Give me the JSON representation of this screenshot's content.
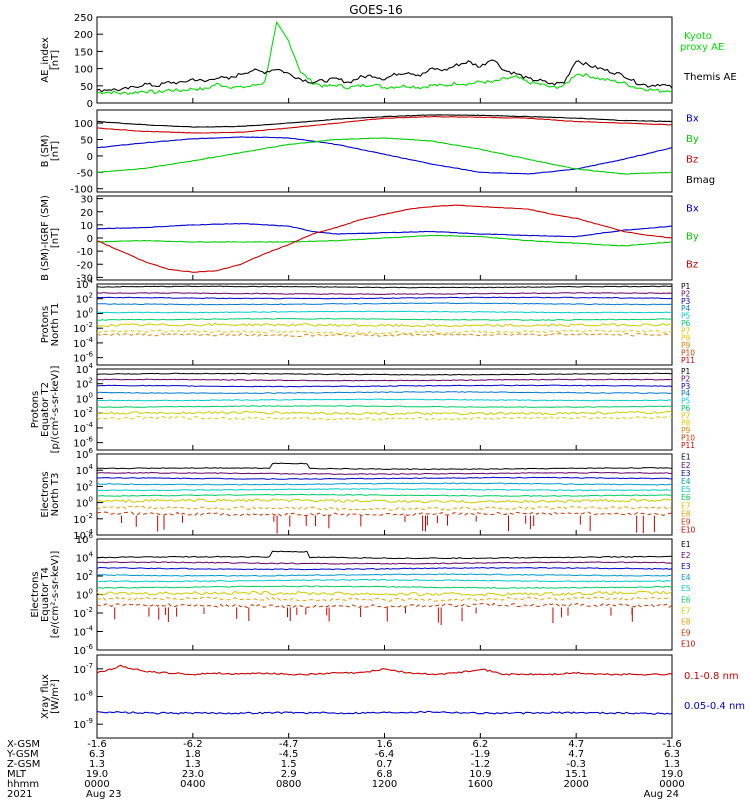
{
  "title": "GOES-16",
  "chart_data": [
    {
      "type": "line",
      "ylabel": "AE_index\n[nT]",
      "ylim": [
        0,
        250
      ],
      "yticks": [
        "0",
        "50",
        "100",
        "150",
        "200",
        "250"
      ],
      "legend": [
        {
          "label": "Kyoto\nproxy AE",
          "color": "#00dd00"
        },
        {
          "label": "Themis AE",
          "color": "#000000"
        }
      ],
      "series": [
        {
          "name": "Kyoto proxy AE",
          "color": "#00dd00",
          "x": [
            0,
            0.5,
            1,
            1.5,
            2,
            2.5,
            3,
            3.5,
            4,
            4.5,
            5,
            5.5,
            6,
            6.5,
            7,
            7.5,
            8,
            8.5,
            9,
            9.5,
            10,
            10.5,
            11,
            11.5,
            12,
            12.5,
            13,
            13.5,
            14,
            14.5,
            15,
            15.5,
            16,
            16.5,
            17,
            17.5,
            18,
            18.5,
            19,
            19.5,
            20,
            20.5,
            21,
            21.5,
            22,
            22.5,
            23,
            23.5,
            24
          ],
          "values": [
            30,
            32,
            28,
            30,
            35,
            30,
            38,
            36,
            42,
            40,
            55,
            48,
            45,
            50,
            60,
            230,
            180,
            90,
            60,
            48,
            52,
            45,
            50,
            55,
            45,
            48,
            50,
            45,
            52,
            50,
            58,
            55,
            62,
            60,
            70,
            75,
            60,
            55,
            45,
            50,
            85,
            80,
            70,
            65,
            58,
            45,
            40,
            35,
            38
          ]
        },
        {
          "name": "Themis AE",
          "color": "#000000",
          "x": [
            0,
            0.5,
            1,
            1.5,
            2,
            2.5,
            3,
            3.5,
            4,
            4.5,
            5,
            5.5,
            6,
            6.5,
            7,
            7.5,
            8,
            8.5,
            9,
            9.5,
            10,
            10.5,
            11,
            11.5,
            12,
            12.5,
            13,
            13.5,
            14,
            14.5,
            15,
            15.5,
            16,
            16.5,
            17,
            17.5,
            18,
            18.5,
            19,
            19.5,
            20,
            20.5,
            21,
            21.5,
            22,
            22.5,
            23,
            23.5,
            24
          ],
          "values": [
            35,
            40,
            38,
            45,
            55,
            50,
            60,
            58,
            70,
            62,
            75,
            70,
            85,
            95,
            90,
            100,
            85,
            70,
            60,
            65,
            70,
            60,
            75,
            80,
            70,
            85,
            90,
            80,
            100,
            95,
            110,
            120,
            105,
            130,
            95,
            85,
            70,
            65,
            55,
            60,
            125,
            110,
            100,
            90,
            80,
            60,
            50,
            55,
            45
          ]
        }
      ]
    },
    {
      "type": "line",
      "ylabel": "B (SM)\n[nT]",
      "ylim": [
        -110,
        140
      ],
      "yticks": [
        "-100",
        "-50",
        "0",
        "50",
        "100"
      ],
      "legend": [
        {
          "label": "Bx",
          "color": "#0000cc"
        },
        {
          "label": "By",
          "color": "#00cc00"
        },
        {
          "label": "Bz",
          "color": "#cc0000"
        },
        {
          "label": "Bmag",
          "color": "#000000"
        }
      ],
      "series": [
        {
          "name": "Bx",
          "color": "#0000cc",
          "x": [
            0,
            2,
            4,
            6,
            8,
            10,
            12,
            14,
            16,
            18,
            20,
            22,
            24
          ],
          "values": [
            25,
            40,
            52,
            58,
            55,
            35,
            5,
            -25,
            -50,
            -55,
            -40,
            -10,
            25
          ]
        },
        {
          "name": "By",
          "color": "#00cc00",
          "x": [
            0,
            2,
            4,
            6,
            8,
            10,
            12,
            14,
            16,
            18,
            20,
            22,
            24
          ],
          "values": [
            -50,
            -38,
            -15,
            10,
            35,
            50,
            55,
            45,
            20,
            -10,
            -40,
            -55,
            -50
          ]
        },
        {
          "name": "Bz",
          "color": "#cc0000",
          "x": [
            0,
            2,
            4,
            6,
            8,
            10,
            12,
            14,
            16,
            18,
            20,
            22,
            24
          ],
          "values": [
            85,
            75,
            70,
            72,
            85,
            100,
            115,
            120,
            118,
            115,
            105,
            100,
            95
          ]
        },
        {
          "name": "Bmag",
          "color": "#000000",
          "x": [
            0,
            2,
            4,
            6,
            8,
            10,
            12,
            14,
            16,
            18,
            20,
            22,
            24
          ],
          "values": [
            105,
            95,
            88,
            90,
            100,
            112,
            120,
            125,
            124,
            120,
            115,
            108,
            105
          ]
        }
      ]
    },
    {
      "type": "line",
      "ylabel": "B (SM)-IGRF (SM)\n[nT]",
      "ylim": [
        -32,
        32
      ],
      "yticks": [
        "-30",
        "-20",
        "-10",
        "0",
        "10",
        "20",
        "30"
      ],
      "legend": [
        {
          "label": "Bx",
          "color": "#0000cc"
        },
        {
          "label": "By",
          "color": "#00cc00"
        },
        {
          "label": "Bz",
          "color": "#cc0000"
        }
      ],
      "series": [
        {
          "name": "Bx",
          "color": "#0000cc",
          "x": [
            0,
            2,
            4,
            6,
            8,
            9,
            10,
            12,
            14,
            16,
            18,
            20,
            22,
            24
          ],
          "values": [
            7,
            8,
            10,
            11,
            9,
            5,
            3,
            4,
            5,
            3,
            2,
            1,
            6,
            9
          ]
        },
        {
          "name": "By",
          "color": "#00cc00",
          "x": [
            0,
            2,
            4,
            6,
            8,
            10,
            12,
            14,
            16,
            18,
            20,
            22,
            24
          ],
          "values": [
            -3,
            -2,
            -3,
            -3,
            -3,
            -2,
            0,
            2,
            1,
            -2,
            -4,
            -6,
            -3
          ]
        },
        {
          "name": "Bz",
          "color": "#cc0000",
          "x": [
            0,
            1,
            2,
            3,
            4,
            5,
            6,
            7,
            8,
            9,
            10,
            11,
            12,
            13,
            14,
            15,
            16,
            17,
            18,
            19,
            20,
            21,
            22,
            23,
            24
          ],
          "values": [
            -2,
            -10,
            -18,
            -24,
            -26,
            -25,
            -20,
            -12,
            -5,
            3,
            8,
            14,
            18,
            22,
            24,
            25,
            24,
            23,
            22,
            18,
            15,
            10,
            5,
            2,
            0
          ]
        }
      ]
    },
    {
      "type": "line",
      "ylabel": "Protons\nNorth T1",
      "log": true,
      "ylim_exp": [
        -7,
        4
      ],
      "yticks": [
        "10^4",
        "10^2",
        "10^0",
        "10^-2",
        "10^-4",
        "10^-6"
      ],
      "legend": [
        {
          "label": "P1",
          "color": "#000000"
        },
        {
          "label": "P2",
          "color": "#660066"
        },
        {
          "label": "P3",
          "color": "#0000cc"
        },
        {
          "label": "P4",
          "color": "#0077cc"
        },
        {
          "label": "P5",
          "color": "#00cccc"
        },
        {
          "label": "P6",
          "color": "#00cc66"
        },
        {
          "label": "P7",
          "color": "#cccc00"
        },
        {
          "label": "P8",
          "color": "#e6c800"
        },
        {
          "label": "P9",
          "color": "#e68000"
        },
        {
          "label": "P10",
          "color": "#cc3300"
        },
        {
          "label": "P11",
          "color": "#cc0000"
        }
      ],
      "levels": [
        3.6,
        2.7,
        2.1,
        1.3,
        0.2,
        -0.8,
        -1.6,
        -2.5,
        -2.9
      ]
    },
    {
      "type": "line",
      "ylabel": "Protons\nEquator T2\n[p/(cm²-s-sr-keV)]",
      "log": true,
      "ylim_exp": [
        -7,
        4
      ],
      "yticks": [
        "10^4",
        "10^2",
        "10^0",
        "10^-2",
        "10^-4",
        "10^-6"
      ],
      "legend": [
        {
          "label": "P1",
          "color": "#000000"
        },
        {
          "label": "P2",
          "color": "#660066"
        },
        {
          "label": "P3",
          "color": "#0000cc"
        },
        {
          "label": "P4",
          "color": "#0077cc"
        },
        {
          "label": "P5",
          "color": "#00cccc"
        },
        {
          "label": "P6",
          "color": "#00cc66"
        },
        {
          "label": "P7",
          "color": "#cccc00"
        },
        {
          "label": "P8",
          "color": "#e6c800"
        },
        {
          "label": "P9",
          "color": "#e68000"
        },
        {
          "label": "P10",
          "color": "#cc3300"
        },
        {
          "label": "P11",
          "color": "#cc0000"
        }
      ],
      "levels": [
        3.3,
        2.5,
        1.7,
        0.8,
        -0.2,
        -1.1,
        -2.0,
        -2.7
      ]
    },
    {
      "type": "line",
      "ylabel": "Electrons\nNorth T3",
      "log": true,
      "ylim_exp": [
        -4,
        6
      ],
      "yticks": [
        "10^6",
        "10^4",
        "10^2",
        "10^0",
        "10^-2",
        "10^-4"
      ],
      "legend": [
        {
          "label": "E1",
          "color": "#000000"
        },
        {
          "label": "E2",
          "color": "#660066"
        },
        {
          "label": "E3",
          "color": "#0000cc"
        },
        {
          "label": "E4",
          "color": "#0099cc"
        },
        {
          "label": "E5",
          "color": "#00cccc"
        },
        {
          "label": "E6",
          "color": "#00cc66"
        },
        {
          "label": "E7",
          "color": "#cccc00"
        },
        {
          "label": "E8",
          "color": "#e6a000"
        },
        {
          "label": "E9",
          "color": "#cc3300"
        },
        {
          "label": "E10",
          "color": "#cc0000"
        }
      ],
      "levels": [
        4.2,
        3.6,
        3.0,
        2.3,
        1.6,
        0.9,
        0.2,
        -0.7,
        -1.4
      ]
    },
    {
      "type": "line",
      "ylabel": "Electrons\nEquator T4\n[e/(cm²-s-sr-keV)]",
      "log": true,
      "ylim_exp": [
        -6,
        6
      ],
      "yticks": [
        "10^6",
        "10^4",
        "10^2",
        "10^0",
        "10^-2",
        "10^-4",
        "10^-6"
      ],
      "legend": [
        {
          "label": "E1",
          "color": "#000000"
        },
        {
          "label": "E2",
          "color": "#660066"
        },
        {
          "label": "E3",
          "color": "#0000cc"
        },
        {
          "label": "E4",
          "color": "#0099cc"
        },
        {
          "label": "E5",
          "color": "#00cccc"
        },
        {
          "label": "E6",
          "color": "#00cc66"
        },
        {
          "label": "E7",
          "color": "#cccc00"
        },
        {
          "label": "E8",
          "color": "#e6a000"
        },
        {
          "label": "E9",
          "color": "#cc3300"
        },
        {
          "label": "E10",
          "color": "#cc0000"
        }
      ],
      "levels": [
        4.0,
        3.4,
        2.8,
        2.1,
        1.5,
        0.8,
        0.1,
        -0.5,
        -1.2
      ]
    },
    {
      "type": "line",
      "ylabel": "Xray flux\n[W/m²]",
      "log": true,
      "ylim_exp": [
        -9.5,
        -6.5
      ],
      "yticks": [
        "10^-7",
        "10^-8",
        "10^-9"
      ],
      "legend": [
        {
          "label": "0.1-0.8 nm",
          "color": "#cc0000"
        },
        {
          "label": "0.05-0.4 nm",
          "color": "#0000cc"
        }
      ],
      "series": [
        {
          "name": "0.1-0.8 nm",
          "color": "#cc0000",
          "x": [
            0,
            1,
            2,
            3,
            4,
            5,
            6,
            7,
            8,
            9,
            10,
            11,
            12,
            13,
            14,
            15,
            16,
            17,
            18,
            19,
            20,
            21,
            22,
            23,
            24
          ],
          "values": [
            -7.15,
            -6.9,
            -7.1,
            -7.15,
            -7.2,
            -7.15,
            -7.2,
            -7.15,
            -7.2,
            -7.2,
            -7.15,
            -7.15,
            -7.0,
            -7.15,
            -7.2,
            -7.15,
            -7.0,
            -7.2,
            -7.2,
            -7.2,
            -7.15,
            -7.2,
            -7.2,
            -7.2,
            -7.2
          ]
        },
        {
          "name": "0.05-0.4 nm",
          "color": "#0000cc",
          "x": [
            0,
            2,
            4,
            6,
            8,
            10,
            12,
            14,
            16,
            18,
            20,
            22,
            24
          ],
          "values": [
            -8.55,
            -8.6,
            -8.6,
            -8.6,
            -8.58,
            -8.6,
            -8.58,
            -8.55,
            -8.6,
            -8.6,
            -8.58,
            -8.6,
            -8.62
          ]
        }
      ]
    }
  ],
  "x_axis": {
    "row_labels": [
      "X-GSM",
      "Y-GSM",
      "Z-GSM",
      "MLT",
      "hhmm",
      "2021"
    ],
    "columns": [
      [
        "-1.6",
        "6.3",
        "1.3",
        "19.0",
        "0000",
        "Aug 23"
      ],
      [
        "-6.2",
        "1.8",
        "1.3",
        "23.0",
        "0400",
        ""
      ],
      [
        "-4.7",
        "-4.5",
        "1.5",
        "2.9",
        "0800",
        ""
      ],
      [
        "1.6",
        "-6.4",
        "0.7",
        "6.8",
        "1200",
        ""
      ],
      [
        "6.2",
        "-1.9",
        "-1.2",
        "10.9",
        "1600",
        ""
      ],
      [
        "4.7",
        "4.7",
        "-0.3",
        "15.1",
        "2000",
        ""
      ],
      [
        "-1.6",
        "6.3",
        "1.3",
        "19.0",
        "0000",
        "Aug 24"
      ]
    ]
  }
}
